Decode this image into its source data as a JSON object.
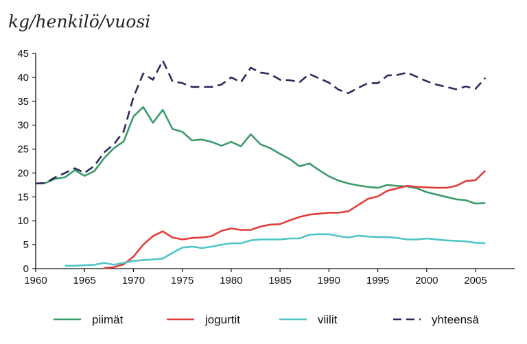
{
  "chart_data": {
    "type": "line",
    "title": "",
    "xlabel": "",
    "ylabel": "kg/henkilö/vuosi",
    "xlim": [
      1960,
      2009
    ],
    "ylim": [
      0,
      45
    ],
    "xticks": [
      1960,
      1965,
      1970,
      1975,
      1980,
      1985,
      1990,
      1995,
      2000,
      2005
    ],
    "yticks": [
      0,
      5,
      10,
      15,
      20,
      25,
      30,
      35,
      40,
      45
    ],
    "grid": false,
    "legend_position": "bottom",
    "series": [
      {
        "name": "piimät",
        "color": "#3a9a6a",
        "dash": false,
        "x": [
          1960,
          1961,
          1962,
          1963,
          1964,
          1965,
          1966,
          1967,
          1968,
          1969,
          1970,
          1971,
          1972,
          1973,
          1974,
          1975,
          1976,
          1977,
          1978,
          1979,
          1980,
          1981,
          1982,
          1983,
          1984,
          1985,
          1986,
          1987,
          1988,
          1989,
          1990,
          1991,
          1992,
          1993,
          1994,
          1995,
          1996,
          1997,
          1998,
          1999,
          2000,
          2001,
          2002,
          2003,
          2004,
          2005,
          2006
        ],
        "y": [
          17.8,
          17.9,
          18.8,
          19.1,
          20.6,
          19.4,
          20.4,
          23.1,
          25.2,
          26.6,
          31.8,
          33.8,
          30.5,
          33.2,
          29.2,
          28.6,
          26.8,
          27.0,
          26.5,
          25.7,
          26.5,
          25.6,
          28.1,
          26.0,
          25.2,
          24.0,
          22.9,
          21.4,
          22.0,
          20.6,
          19.3,
          18.4,
          17.8,
          17.4,
          17.1,
          16.9,
          17.5,
          17.3,
          17.2,
          16.8,
          16.0,
          15.5,
          15.0,
          14.5,
          14.3,
          13.6,
          13.7
        ]
      },
      {
        "name": "jogurtit",
        "color": "#e23d3a",
        "dash": false,
        "x": [
          1967,
          1968,
          1969,
          1970,
          1971,
          1972,
          1973,
          1974,
          1975,
          1976,
          1977,
          1978,
          1979,
          1980,
          1981,
          1982,
          1983,
          1984,
          1985,
          1986,
          1987,
          1988,
          1989,
          1990,
          1991,
          1992,
          1993,
          1994,
          1995,
          1996,
          1997,
          1998,
          1999,
          2000,
          2001,
          2002,
          2003,
          2004,
          2005,
          2006
        ],
        "y": [
          0.1,
          0.3,
          0.9,
          2.5,
          5.0,
          6.8,
          7.8,
          6.5,
          6.1,
          6.4,
          6.5,
          6.8,
          7.9,
          8.4,
          8.1,
          8.1,
          8.8,
          9.2,
          9.3,
          10.1,
          10.8,
          11.3,
          11.5,
          11.7,
          11.7,
          12.0,
          13.3,
          14.6,
          15.1,
          16.3,
          16.8,
          17.3,
          17.1,
          17.0,
          16.9,
          16.9,
          17.3,
          18.3,
          18.5,
          20.5
        ]
      },
      {
        "name": "viilit",
        "color": "#4ec5c8",
        "dash": false,
        "x": [
          1963,
          1964,
          1965,
          1966,
          1967,
          1968,
          1969,
          1970,
          1971,
          1972,
          1973,
          1974,
          1975,
          1976,
          1977,
          1978,
          1979,
          1980,
          1981,
          1982,
          1983,
          1984,
          1985,
          1986,
          1987,
          1988,
          1989,
          1990,
          1991,
          1992,
          1993,
          1994,
          1995,
          1996,
          1997,
          1998,
          1999,
          2000,
          2001,
          2002,
          2003,
          2004,
          2005,
          2006
        ],
        "y": [
          0.6,
          0.6,
          0.7,
          0.8,
          1.2,
          0.8,
          1.2,
          1.6,
          1.8,
          1.9,
          2.1,
          3.3,
          4.4,
          4.6,
          4.3,
          4.6,
          5.0,
          5.3,
          5.3,
          5.9,
          6.1,
          6.1,
          6.1,
          6.3,
          6.3,
          7.1,
          7.2,
          7.2,
          6.8,
          6.5,
          6.9,
          6.7,
          6.6,
          6.6,
          6.4,
          6.1,
          6.1,
          6.3,
          6.1,
          5.9,
          5.8,
          5.7,
          5.4,
          5.3
        ]
      },
      {
        "name": "yhteensä",
        "color": "#2c2a5c",
        "dash": true,
        "x": [
          1960,
          1961,
          1962,
          1963,
          1964,
          1965,
          1966,
          1967,
          1968,
          1969,
          1970,
          1971,
          1972,
          1973,
          1974,
          1975,
          1976,
          1977,
          1978,
          1979,
          1980,
          1981,
          1982,
          1983,
          1984,
          1985,
          1986,
          1987,
          1988,
          1989,
          1990,
          1991,
          1992,
          1993,
          1994,
          1995,
          1996,
          1997,
          1998,
          1999,
          2000,
          2001,
          2002,
          2003,
          2004,
          2005,
          2006
        ],
        "y": [
          17.8,
          17.9,
          19.1,
          20.0,
          21.0,
          20.0,
          21.5,
          24.3,
          26.0,
          28.7,
          35.8,
          40.8,
          39.5,
          43.5,
          39.2,
          38.8,
          38.0,
          38.0,
          38.0,
          38.5,
          40.0,
          39.0,
          42.0,
          41.0,
          40.7,
          39.5,
          39.4,
          39.0,
          40.7,
          39.8,
          38.9,
          37.4,
          36.7,
          37.8,
          38.8,
          38.8,
          40.4,
          40.5,
          41.0,
          40.1,
          39.2,
          38.5,
          38.0,
          37.5,
          38.1,
          37.6,
          39.9
        ]
      }
    ]
  }
}
